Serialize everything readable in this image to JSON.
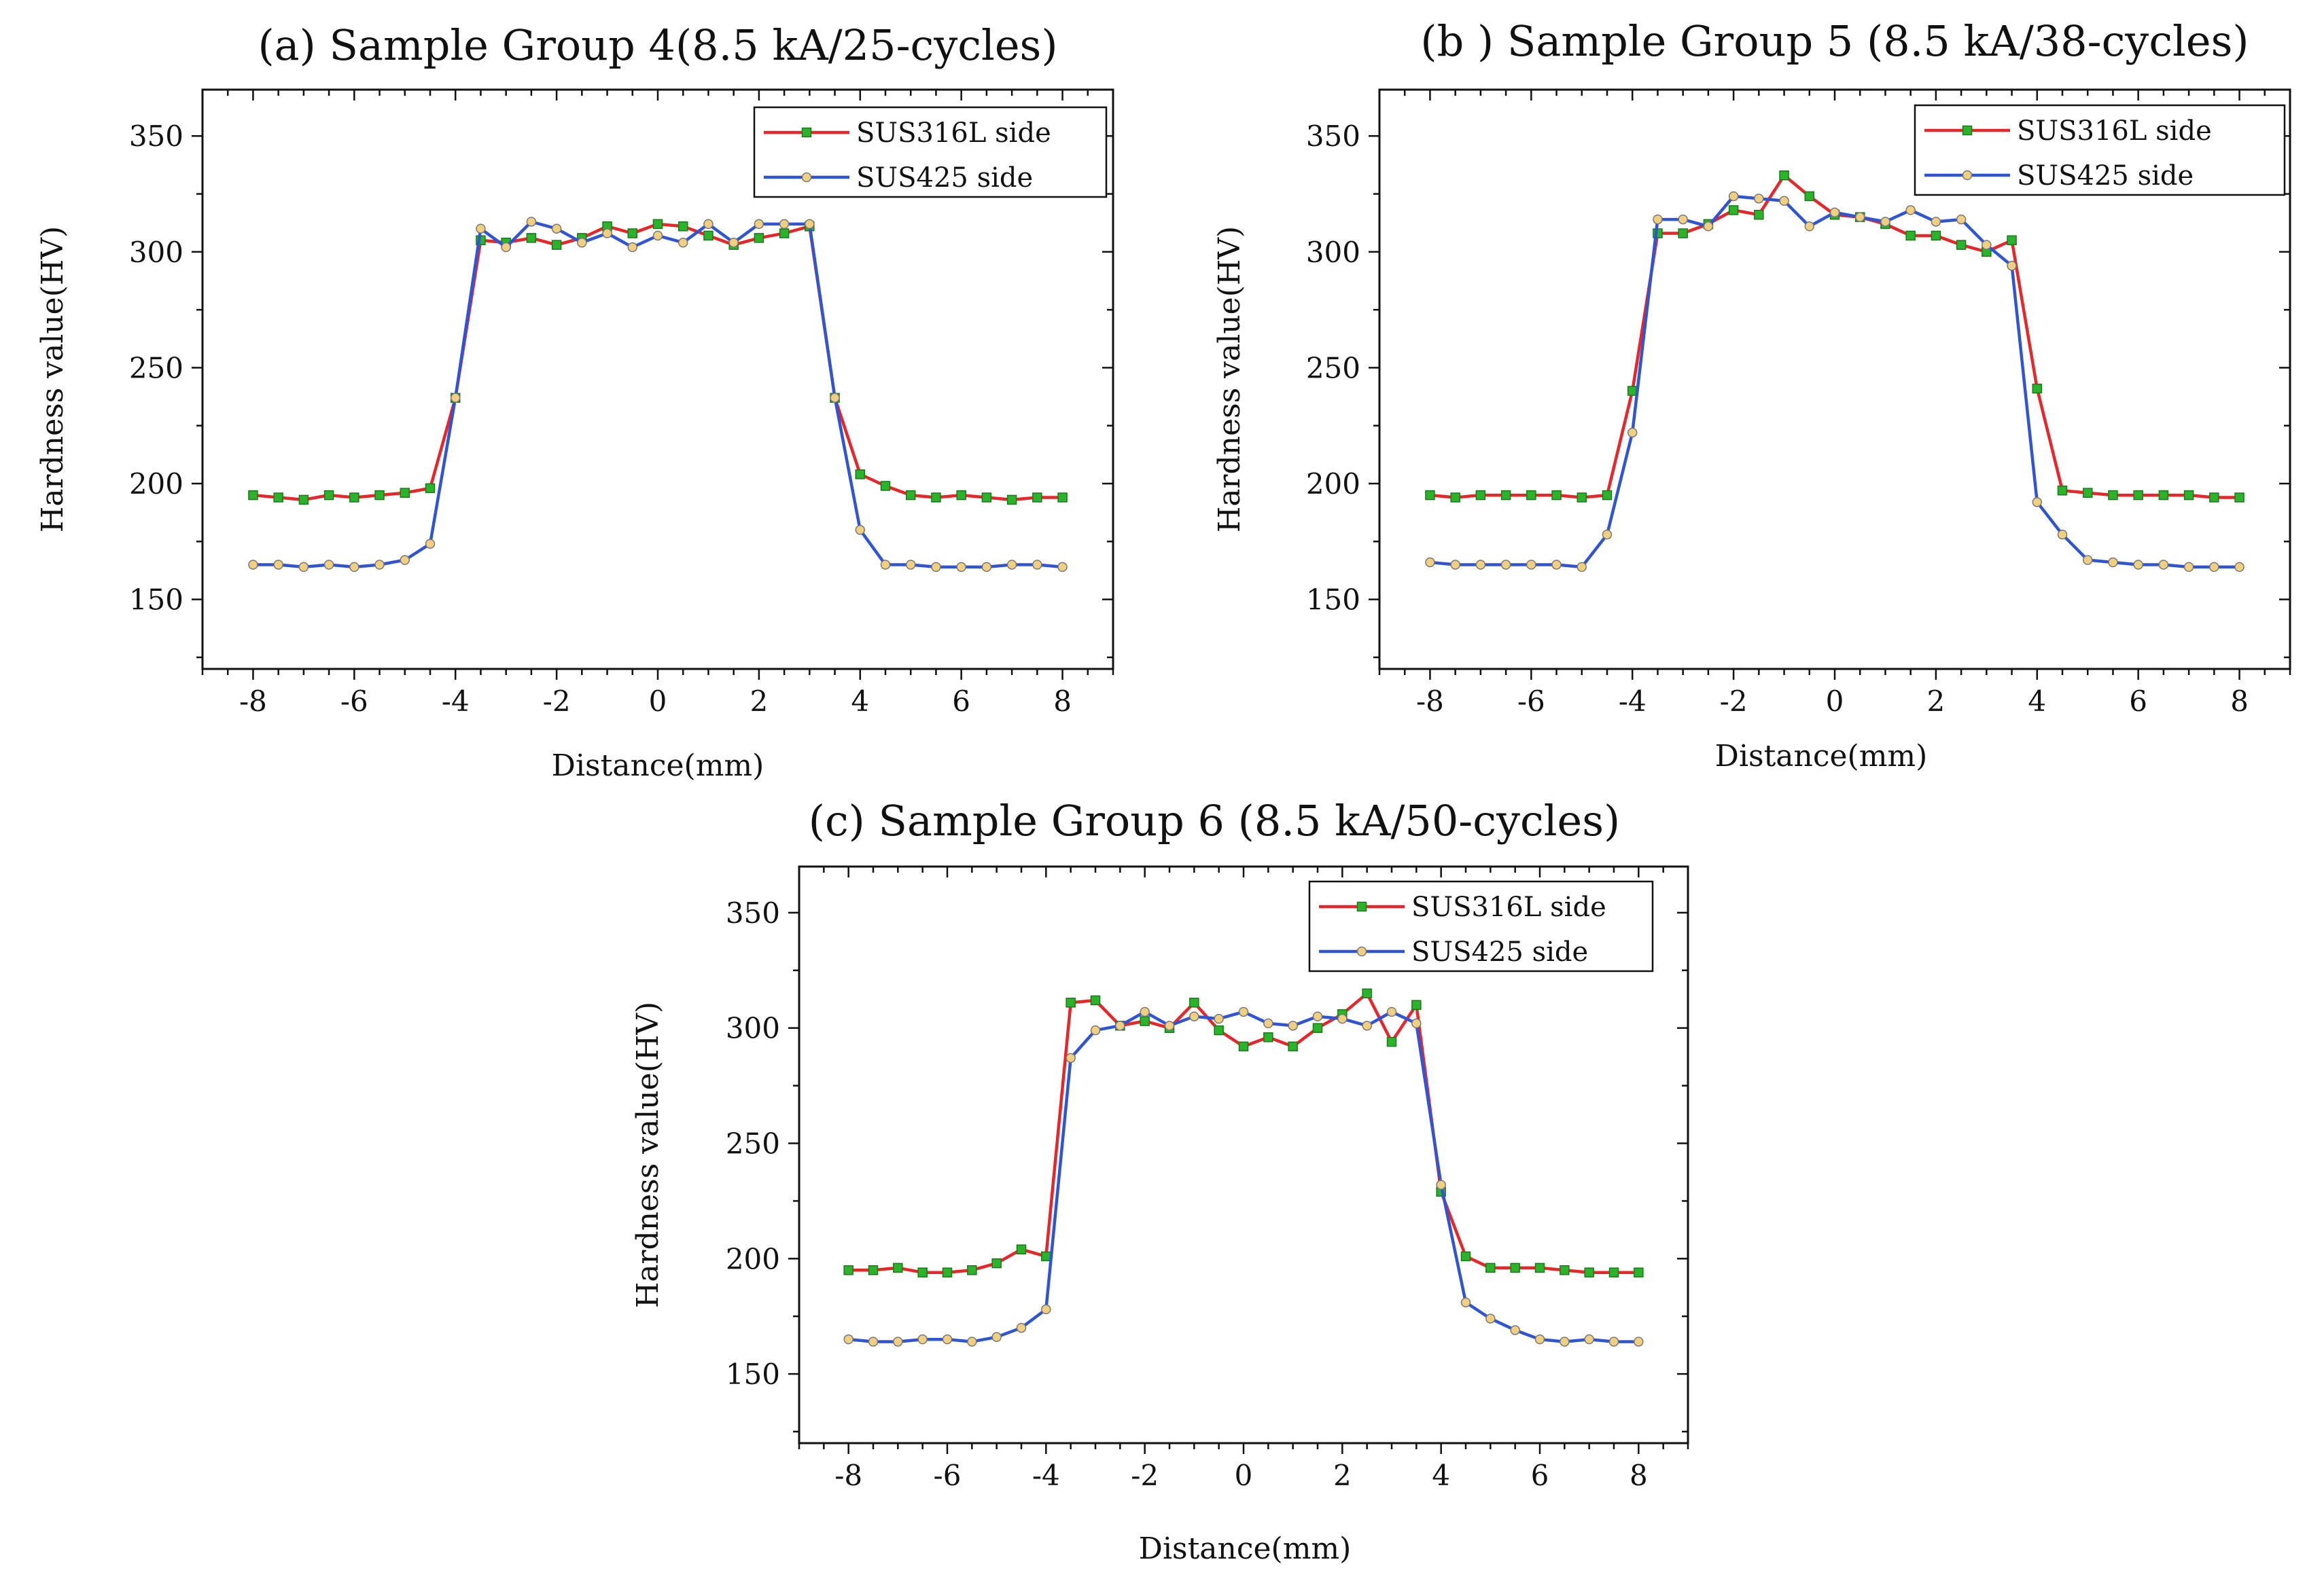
{
  "chart_data": [
    {
      "type": "line",
      "title": "(a) Sample Group 4(8.5 kA/25-cycles)",
      "xlabel": "Distance(mm)",
      "ylabel": "Hardness value(HV)",
      "xlim": [
        -9,
        9
      ],
      "ylim": [
        120,
        370
      ],
      "xticks": [
        -8,
        -6,
        -4,
        -2,
        0,
        2,
        4,
        6,
        8
      ],
      "yticks": [
        150,
        200,
        250,
        300,
        350
      ],
      "legend": "top-right",
      "series": [
        {
          "name": "SUS316L side",
          "color": "#e8262a",
          "marker_color": "#2bb32b",
          "marker": "square",
          "x": [
            -8,
            -7.5,
            -7,
            -6.5,
            -6,
            -5.5,
            -5,
            -4.5,
            -4,
            -3.5,
            -3,
            -2.5,
            -2,
            -1.5,
            -1,
            -0.5,
            0,
            0.5,
            1,
            1.5,
            2,
            2.5,
            3,
            3.5,
            4,
            4.5,
            5,
            5.5,
            6,
            6.5,
            7,
            7.5,
            8
          ],
          "y": [
            195,
            194,
            193,
            195,
            194,
            195,
            196,
            198,
            237,
            305,
            304,
            306,
            303,
            306,
            311,
            308,
            312,
            311,
            307,
            303,
            306,
            308,
            311,
            237,
            204,
            199,
            195,
            194,
            195,
            194,
            193,
            194,
            194
          ]
        },
        {
          "name": "SUS425 side",
          "color": "#2f55d4",
          "marker_color": "#f0d080",
          "marker": "circle",
          "x": [
            -8,
            -7.5,
            -7,
            -6.5,
            -6,
            -5.5,
            -5,
            -4.5,
            -4,
            -3.5,
            -3,
            -2.5,
            -2,
            -1.5,
            -1,
            -0.5,
            0,
            0.5,
            1,
            1.5,
            2,
            2.5,
            3,
            3.5,
            4,
            4.5,
            5,
            5.5,
            6,
            6.5,
            7,
            7.5,
            8
          ],
          "y": [
            165,
            165,
            164,
            165,
            164,
            165,
            167,
            174,
            237,
            310,
            302,
            313,
            310,
            304,
            308,
            302,
            307,
            304,
            312,
            304,
            312,
            312,
            312,
            237,
            180,
            165,
            165,
            164,
            164,
            164,
            165,
            165,
            164
          ]
        }
      ]
    },
    {
      "type": "line",
      "title": "(b ) Sample Group 5 (8.5 kA/38-cycles)",
      "xlabel": "Distance(mm)",
      "ylabel": "Hardness value(HV)",
      "xlim": [
        -9,
        9
      ],
      "ylim": [
        120,
        370
      ],
      "xticks": [
        -8,
        -6,
        -4,
        -2,
        0,
        2,
        4,
        6,
        8
      ],
      "yticks": [
        150,
        200,
        250,
        300,
        350
      ],
      "legend": "top-right",
      "series": [
        {
          "name": "SUS316L side",
          "color": "#e8262a",
          "marker_color": "#2bb32b",
          "marker": "square",
          "x": [
            -8,
            -7.5,
            -7,
            -6.5,
            -6,
            -5.5,
            -5,
            -4.5,
            -4,
            -3.5,
            -3,
            -2.5,
            -2,
            -1.5,
            -1,
            -0.5,
            0,
            0.5,
            1,
            1.5,
            2,
            2.5,
            3,
            3.5,
            4,
            4.5,
            5,
            5.5,
            6,
            6.5,
            7,
            7.5,
            8
          ],
          "y": [
            195,
            194,
            195,
            195,
            195,
            195,
            194,
            195,
            240,
            308,
            308,
            312,
            318,
            316,
            333,
            324,
            316,
            315,
            312,
            307,
            307,
            303,
            300,
            305,
            241,
            197,
            196,
            195,
            195,
            195,
            195,
            194,
            194
          ]
        },
        {
          "name": "SUS425 side",
          "color": "#2f55d4",
          "marker_color": "#f0d080",
          "marker": "circle",
          "x": [
            -8,
            -7.5,
            -7,
            -6.5,
            -6,
            -5.5,
            -5,
            -4.5,
            -4,
            -3.5,
            -3,
            -2.5,
            -2,
            -1.5,
            -1,
            -0.5,
            0,
            0.5,
            1,
            1.5,
            2,
            2.5,
            3,
            3.5,
            4,
            4.5,
            5,
            5.5,
            6,
            6.5,
            7,
            7.5,
            8
          ],
          "y": [
            166,
            165,
            165,
            165,
            165,
            165,
            164,
            178,
            222,
            314,
            314,
            311,
            324,
            323,
            322,
            311,
            317,
            315,
            313,
            318,
            313,
            314,
            303,
            294,
            192,
            178,
            167,
            166,
            165,
            165,
            164,
            164,
            164
          ]
        }
      ]
    },
    {
      "type": "line",
      "title": "(c) Sample Group 6 (8.5 kA/50-cycles)",
      "xlabel": "Distance(mm)",
      "ylabel": "Hardness value(HV)",
      "xlim": [
        -9,
        9
      ],
      "ylim": [
        120,
        370
      ],
      "xticks": [
        -8,
        -6,
        -4,
        -2,
        0,
        2,
        4,
        6,
        8
      ],
      "yticks": [
        150,
        200,
        250,
        300,
        350
      ],
      "legend": "top-right",
      "series": [
        {
          "name": "SUS316L side",
          "color": "#e8262a",
          "marker_color": "#2bb32b",
          "marker": "square",
          "x": [
            -8,
            -7.5,
            -7,
            -6.5,
            -6,
            -5.5,
            -5,
            -4.5,
            -4,
            -3.5,
            -3,
            -2.5,
            -2,
            -1.5,
            -1,
            -0.5,
            0,
            0.5,
            1,
            1.5,
            2,
            2.5,
            3,
            3.5,
            4,
            4.5,
            5,
            5.5,
            6,
            6.5,
            7,
            7.5,
            8
          ],
          "y": [
            195,
            195,
            196,
            194,
            194,
            195,
            198,
            204,
            201,
            311,
            312,
            301,
            303,
            300,
            311,
            299,
            292,
            296,
            292,
            300,
            306,
            315,
            294,
            310,
            229,
            201,
            196,
            196,
            196,
            195,
            194,
            194,
            194
          ]
        },
        {
          "name": "SUS425 side",
          "color": "#2f55d4",
          "marker_color": "#f0d080",
          "marker": "circle",
          "x": [
            -8,
            -7.5,
            -7,
            -6.5,
            -6,
            -5.5,
            -5,
            -4.5,
            -4,
            -3.5,
            -3,
            -2.5,
            -2,
            -1.5,
            -1,
            -0.5,
            0,
            0.5,
            1,
            1.5,
            2,
            2.5,
            3,
            3.5,
            4,
            4.5,
            5,
            5.5,
            6,
            6.5,
            7,
            7.5,
            8
          ],
          "y": [
            165,
            164,
            164,
            165,
            165,
            164,
            166,
            170,
            178,
            287,
            299,
            301,
            307,
            301,
            305,
            304,
            307,
            302,
            301,
            305,
            304,
            301,
            307,
            302,
            232,
            181,
            174,
            169,
            165,
            164,
            165,
            164,
            164
          ]
        }
      ]
    }
  ]
}
